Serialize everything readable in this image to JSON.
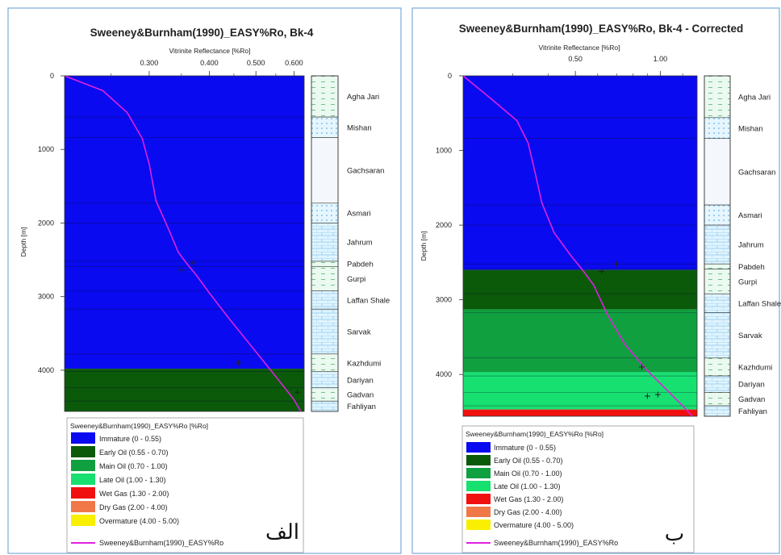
{
  "panels": [
    {
      "title": "Sweeney&Burnham(1990)_EASY%Ro, Bk-4",
      "corner_label": "الف"
    },
    {
      "title": "Sweeney&Burnham(1990)_EASY%Ro, Bk-4 - Corrected",
      "corner_label": "ب"
    }
  ],
  "legend": {
    "title": "Sweeney&Burnham(1990)_EASY%Ro [%Ro]",
    "items": [
      {
        "label": "Immature (0 - 0.55)",
        "color": "#0a0af0"
      },
      {
        "label": "Early Oil (0.55 - 0.70)",
        "color": "#0a5a0a"
      },
      {
        "label": "Main Oil (0.70 - 1.00)",
        "color": "#10a040"
      },
      {
        "label": "Late Oil (1.00 - 1.30)",
        "color": "#18e070"
      },
      {
        "label": "Wet Gas (1.30 - 2.00)",
        "color": "#f01010"
      },
      {
        "label": "Dry Gas (2.00 - 4.00)",
        "color": "#f07848"
      },
      {
        "label": "Overmature (4.00 - 5.00)",
        "color": "#f8f000"
      }
    ],
    "line_label": "Sweeney&Burnham(1990)_EASY%Ro",
    "line_color": "#e020e0"
  },
  "chart_data": [
    {
      "type": "line",
      "title": "Sweeney&Burnham(1990)_EASY%Ro, Bk-4",
      "xlabel": "Vitrinite Reflectance [%Ro]",
      "ylabel": "Depth [m]",
      "x_scale": "log",
      "xlim": [
        0.2,
        0.63
      ],
      "ylim": [
        0,
        4560
      ],
      "x_ticks": [
        0.3,
        0.4,
        0.5,
        0.6
      ],
      "x_tick_labels": [
        "0.300",
        "0.400",
        "0.500",
        "0.600"
      ],
      "y_ticks": [
        0,
        1000,
        2000,
        3000,
        4000
      ],
      "y_tick_labels": [
        "0",
        "1000",
        "2000",
        "3000",
        "4000"
      ],
      "series": [
        {
          "name": "Sweeney&Burnham(1990)_EASY%Ro",
          "x": [
            0.2,
            0.24,
            0.27,
            0.29,
            0.3,
            0.31,
            0.33,
            0.345,
            0.36,
            0.375,
            0.4,
            0.44,
            0.5,
            0.56,
            0.6,
            0.62
          ],
          "y": [
            0,
            200,
            500,
            850,
            1200,
            1700,
            2100,
            2400,
            2560,
            2700,
            2950,
            3300,
            3750,
            4150,
            4400,
            4560
          ]
        }
      ],
      "measured": {
        "x": [
          0.35,
          0.37,
          0.46,
          0.61
        ],
        "y": [
          2640,
          2540,
          3900,
          4300
        ]
      },
      "maturity_zones": [
        {
          "zone": "Immature (0 - 0.55)",
          "top": 0,
          "base": 3980
        },
        {
          "zone": "Early Oil (0.55 - 0.70)",
          "top": 3980,
          "base": 4560
        }
      ],
      "formations": [
        {
          "name": "Agha Jari",
          "top": 0,
          "base": 560,
          "lith": "dash"
        },
        {
          "name": "Mishan",
          "top": 560,
          "base": 840,
          "lith": "dot"
        },
        {
          "name": "Gachsaran",
          "top": 840,
          "base": 1730,
          "lith": "blank"
        },
        {
          "name": "Asmari",
          "top": 1730,
          "base": 2000,
          "lith": "dot"
        },
        {
          "name": "Jahrum",
          "top": 2000,
          "base": 2520,
          "lith": "brick"
        },
        {
          "name": "Pabdeh",
          "top": 2520,
          "base": 2590,
          "lith": "dash"
        },
        {
          "name": "Gurpi",
          "top": 2590,
          "base": 2920,
          "lith": "dash"
        },
        {
          "name": "Laffan Shale",
          "top": 2920,
          "base": 3170,
          "lith": "brick"
        },
        {
          "name": "Sarvak",
          "top": 3170,
          "base": 3780,
          "lith": "brick"
        },
        {
          "name": "Kazhdumi",
          "top": 3780,
          "base": 4020,
          "lith": "dash"
        },
        {
          "name": "Dariyan",
          "top": 4020,
          "base": 4240,
          "lith": "brick"
        },
        {
          "name": "Gadvan",
          "top": 4240,
          "base": 4420,
          "lith": "dash"
        },
        {
          "name": "Fahliyan",
          "top": 4420,
          "base": 4560,
          "lith": "brick"
        }
      ]
    },
    {
      "type": "line",
      "title": "Sweeney&Burnham(1990)_EASY%Ro, Bk-4 - Corrected",
      "xlabel": "Vitrinite Reflectance [%Ro]",
      "ylabel": "Depth [m]",
      "x_scale": "log",
      "xlim": [
        0.2,
        1.35
      ],
      "ylim": [
        0,
        4560
      ],
      "x_ticks": [
        0.5,
        1.0
      ],
      "x_tick_labels": [
        "0.50",
        "1.00"
      ],
      "y_ticks": [
        0,
        1000,
        2000,
        3000,
        4000
      ],
      "y_tick_labels": [
        "0",
        "1000",
        "2000",
        "3000",
        "4000"
      ],
      "series": [
        {
          "name": "Sweeney&Burnham(1990)_EASY%Ro",
          "x": [
            0.2,
            0.25,
            0.31,
            0.34,
            0.36,
            0.38,
            0.42,
            0.48,
            0.53,
            0.58,
            0.65,
            0.75,
            0.9,
            1.05,
            1.2,
            1.3
          ],
          "y": [
            0,
            300,
            600,
            900,
            1300,
            1700,
            2100,
            2400,
            2600,
            2800,
            3200,
            3600,
            3950,
            4200,
            4420,
            4560
          ]
        }
      ],
      "measured": {
        "x": [
          0.62,
          0.7,
          0.86,
          0.9,
          0.98
        ],
        "y": [
          2620,
          2520,
          3900,
          4290,
          4270
        ]
      },
      "maturity_zones": [
        {
          "zone": "Immature (0 - 0.55)",
          "top": 0,
          "base": 2600
        },
        {
          "zone": "Early Oil (0.55 - 0.70)",
          "top": 2600,
          "base": 3130
        },
        {
          "zone": "Main Oil (0.70 - 1.00)",
          "top": 3130,
          "base": 3970
        },
        {
          "zone": "Late Oil (1.00 - 1.30)",
          "top": 3970,
          "base": 4470
        },
        {
          "zone": "Wet Gas (1.30 - 2.00)",
          "top": 4470,
          "base": 4560
        }
      ],
      "formations": [
        {
          "name": "Agha Jari",
          "top": 0,
          "base": 560,
          "lith": "dash"
        },
        {
          "name": "Mishan",
          "top": 560,
          "base": 840,
          "lith": "dot"
        },
        {
          "name": "Gachsaran",
          "top": 840,
          "base": 1730,
          "lith": "blank"
        },
        {
          "name": "Asmari",
          "top": 1730,
          "base": 2000,
          "lith": "dot"
        },
        {
          "name": "Jahrum",
          "top": 2000,
          "base": 2520,
          "lith": "brick"
        },
        {
          "name": "Pabdeh",
          "top": 2520,
          "base": 2590,
          "lith": "dash"
        },
        {
          "name": "Gurpi",
          "top": 2590,
          "base": 2920,
          "lith": "dash"
        },
        {
          "name": "Laffan Shale",
          "top": 2920,
          "base": 3170,
          "lith": "brick"
        },
        {
          "name": "Sarvak",
          "top": 3170,
          "base": 3780,
          "lith": "brick"
        },
        {
          "name": "Kazhdumi",
          "top": 3780,
          "base": 4020,
          "lith": "dash"
        },
        {
          "name": "Dariyan",
          "top": 4020,
          "base": 4240,
          "lith": "brick"
        },
        {
          "name": "Gadvan",
          "top": 4240,
          "base": 4420,
          "lith": "dash"
        },
        {
          "name": "Fahliyan",
          "top": 4420,
          "base": 4560,
          "lith": "brick"
        }
      ]
    }
  ]
}
